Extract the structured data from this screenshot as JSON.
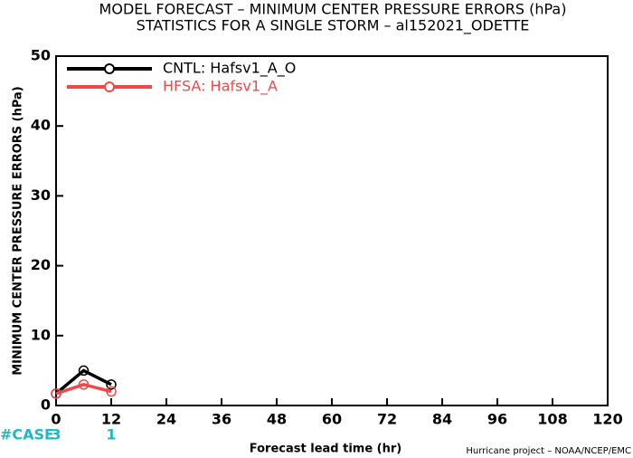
{
  "chart_data": {
    "type": "line",
    "title": "MODEL FORECAST – MINIMUM CENTER PRESSURE ERRORS (hPa)",
    "subtitle": "STATISTICS FOR A SINGLE STORM – al152021_ODETTE",
    "y_label": "MINIMUM CENTER PRESSURE ERRORS (hPa)",
    "x_label": "Forecast lead time (hr)",
    "footer": "Hurricane project – NOAA/NCEP/EMC",
    "x": [
      0,
      6,
      12
    ],
    "series": [
      {
        "name": "CNTL: Hafsv1_A_O",
        "color": "#000000",
        "values": [
          1.7,
          5,
          3
        ]
      },
      {
        "name": "HFSA: Hafsv1_A",
        "color": "#f04848",
        "values": [
          1.7,
          3,
          2
        ]
      }
    ],
    "xlim": [
      0,
      120
    ],
    "xticks": [
      0,
      12,
      24,
      36,
      48,
      60,
      72,
      84,
      96,
      108,
      120
    ],
    "ylim": [
      0,
      50
    ],
    "yticks": [
      0,
      10,
      20,
      30,
      40,
      50
    ],
    "legend": "upper-left",
    "case_counts": {
      "label": "#CASE",
      "color": "#1fb8c8",
      "x": [
        0,
        12
      ],
      "values": [
        3,
        1
      ]
    }
  }
}
